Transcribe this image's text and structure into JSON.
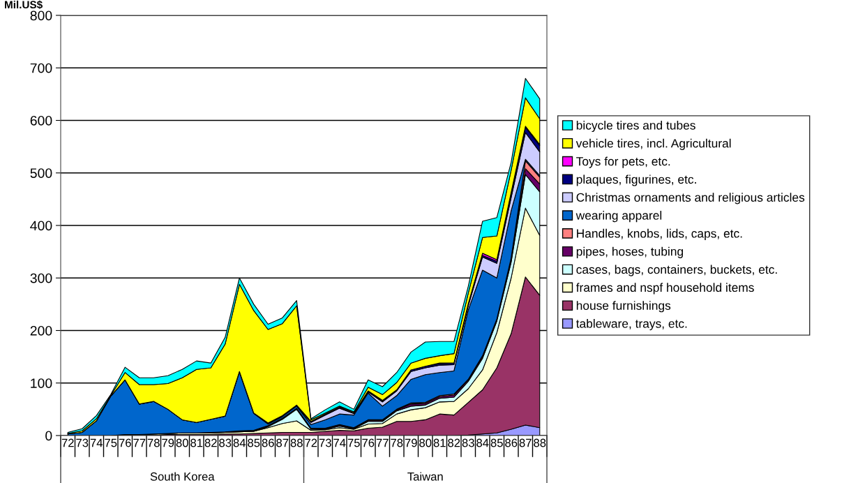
{
  "chart_data": {
    "type": "area",
    "stacked": true,
    "ylabel": "Mil.US$",
    "categories": [
      "72",
      "73",
      "74",
      "75",
      "76",
      "77",
      "78",
      "79",
      "80",
      "81",
      "82",
      "83",
      "84",
      "85",
      "86",
      "87",
      "88",
      "72",
      "73",
      "74",
      "75",
      "76",
      "77",
      "78",
      "79",
      "80",
      "81",
      "82",
      "83",
      "84",
      "85",
      "86",
      "87",
      "88"
    ],
    "annotations": [
      "South Korea",
      "Taiwan"
    ],
    "ylim": [
      0,
      800
    ],
    "yticks": [
      0,
      100,
      200,
      300,
      400,
      500,
      600,
      700,
      800
    ],
    "grid": "y",
    "legend": "right",
    "series": [
      {
        "name": "tableware, trays, etc.",
        "color": "#9999ff",
        "values": [
          0,
          0,
          0,
          0,
          0,
          0,
          0,
          0,
          0,
          0,
          0,
          0,
          0,
          0,
          0,
          0,
          0,
          0,
          0,
          0,
          0,
          0,
          0,
          0,
          0,
          0,
          0,
          0,
          1,
          3,
          5,
          12,
          20,
          15
        ]
      },
      {
        "name": "house furnishings",
        "color": "#993366",
        "values": [
          0,
          0,
          0,
          0,
          1,
          1,
          1,
          2,
          2,
          2,
          2,
          3,
          3,
          4,
          5,
          6,
          6,
          6,
          8,
          10,
          9,
          14,
          16,
          27,
          27,
          30,
          41,
          39,
          62,
          84,
          124,
          182,
          282,
          252
        ]
      },
      {
        "name": "frames and nspf household items",
        "color": "#ffffcc",
        "values": [
          0,
          0,
          0,
          0,
          1,
          1,
          2,
          2,
          3,
          3,
          3,
          3,
          4,
          4,
          10,
          17,
          22,
          4,
          3,
          5,
          3,
          8,
          7,
          14,
          22,
          23,
          23,
          26,
          26,
          38,
          67,
          106,
          131,
          114
        ]
      },
      {
        "name": "cases, bags, containers, buckets, etc.",
        "color": "#ccffff",
        "values": [
          0,
          0,
          0,
          0,
          0,
          0,
          0,
          0,
          0,
          0,
          0,
          0,
          0,
          0,
          2,
          8,
          22,
          2,
          1,
          3,
          1,
          5,
          4,
          6,
          7,
          5,
          7,
          8,
          14,
          22,
          22,
          30,
          64,
          83
        ]
      },
      {
        "name": "pipes, hoses, tubing",
        "color": "#660066",
        "values": [
          0,
          0,
          0,
          0,
          0,
          0,
          0,
          0,
          0,
          0,
          1,
          1,
          1,
          1,
          1,
          1,
          1,
          1,
          1,
          2,
          1,
          2,
          2,
          2,
          4,
          3,
          3,
          4,
          3,
          4,
          3,
          4,
          11,
          15
        ]
      },
      {
        "name": "Handles, knobs, lids, caps, etc.",
        "color": "#ff8080",
        "values": [
          0,
          0,
          0,
          0,
          0,
          0,
          0,
          0,
          0,
          0,
          0,
          0,
          1,
          1,
          1,
          1,
          1,
          1,
          1,
          1,
          1,
          1,
          1,
          1,
          2,
          2,
          2,
          2,
          1,
          1,
          1,
          4,
          15,
          13
        ]
      },
      {
        "name": "wearing apparel",
        "color": "#0066cc",
        "values": [
          3,
          6,
          28,
          75,
          104,
          58,
          62,
          46,
          25,
          20,
          25,
          30,
          112,
          32,
          3,
          3,
          4,
          7,
          16,
          20,
          24,
          51,
          26,
          26,
          45,
          53,
          44,
          44,
          132,
          163,
          78,
          90,
          3,
          3
        ]
      },
      {
        "name": "Christmas ornaments and religious articles",
        "color": "#ccccff",
        "values": [
          0,
          0,
          0,
          0,
          0,
          0,
          0,
          0,
          0,
          0,
          0,
          0,
          0,
          0,
          1,
          1,
          1,
          4,
          9,
          11,
          3,
          2,
          8,
          9,
          15,
          13,
          14,
          12,
          8,
          25,
          28,
          25,
          51,
          45
        ]
      },
      {
        "name": "plaques, figurines, etc.",
        "color": "#000080",
        "values": [
          0,
          0,
          0,
          0,
          0,
          0,
          0,
          0,
          0,
          0,
          0,
          0,
          1,
          1,
          1,
          1,
          1,
          2,
          2,
          2,
          1,
          2,
          2,
          2,
          3,
          3,
          3,
          3,
          2,
          3,
          4,
          8,
          10,
          12
        ]
      },
      {
        "name": "Toys for pets, etc.",
        "color": "#ff00ff",
        "values": [
          0,
          0,
          0,
          0,
          0,
          0,
          0,
          0,
          0,
          0,
          0,
          0,
          0,
          0,
          0,
          0,
          0,
          0,
          0,
          0,
          0,
          0,
          1,
          0,
          0,
          0,
          1,
          0,
          2,
          4,
          3,
          2,
          2,
          2
        ]
      },
      {
        "name": "vehicle tires, incl. Agricultural",
        "color": "#ffff00",
        "values": [
          1,
          3,
          4,
          1,
          14,
          37,
          32,
          49,
          80,
          101,
          98,
          137,
          166,
          195,
          178,
          175,
          189,
          3,
          2,
          2,
          2,
          7,
          11,
          14,
          13,
          15,
          14,
          18,
          20,
          30,
          45,
          42,
          54,
          49
        ]
      },
      {
        "name": "bicycle tires and tubes",
        "color": "#00ffff",
        "values": [
          2,
          4,
          6,
          2,
          10,
          13,
          13,
          15,
          16,
          16,
          9,
          13,
          12,
          12,
          10,
          11,
          10,
          2,
          6,
          8,
          5,
          14,
          15,
          19,
          21,
          31,
          27,
          23,
          13,
          31,
          35,
          15,
          37,
          38
        ]
      }
    ]
  }
}
